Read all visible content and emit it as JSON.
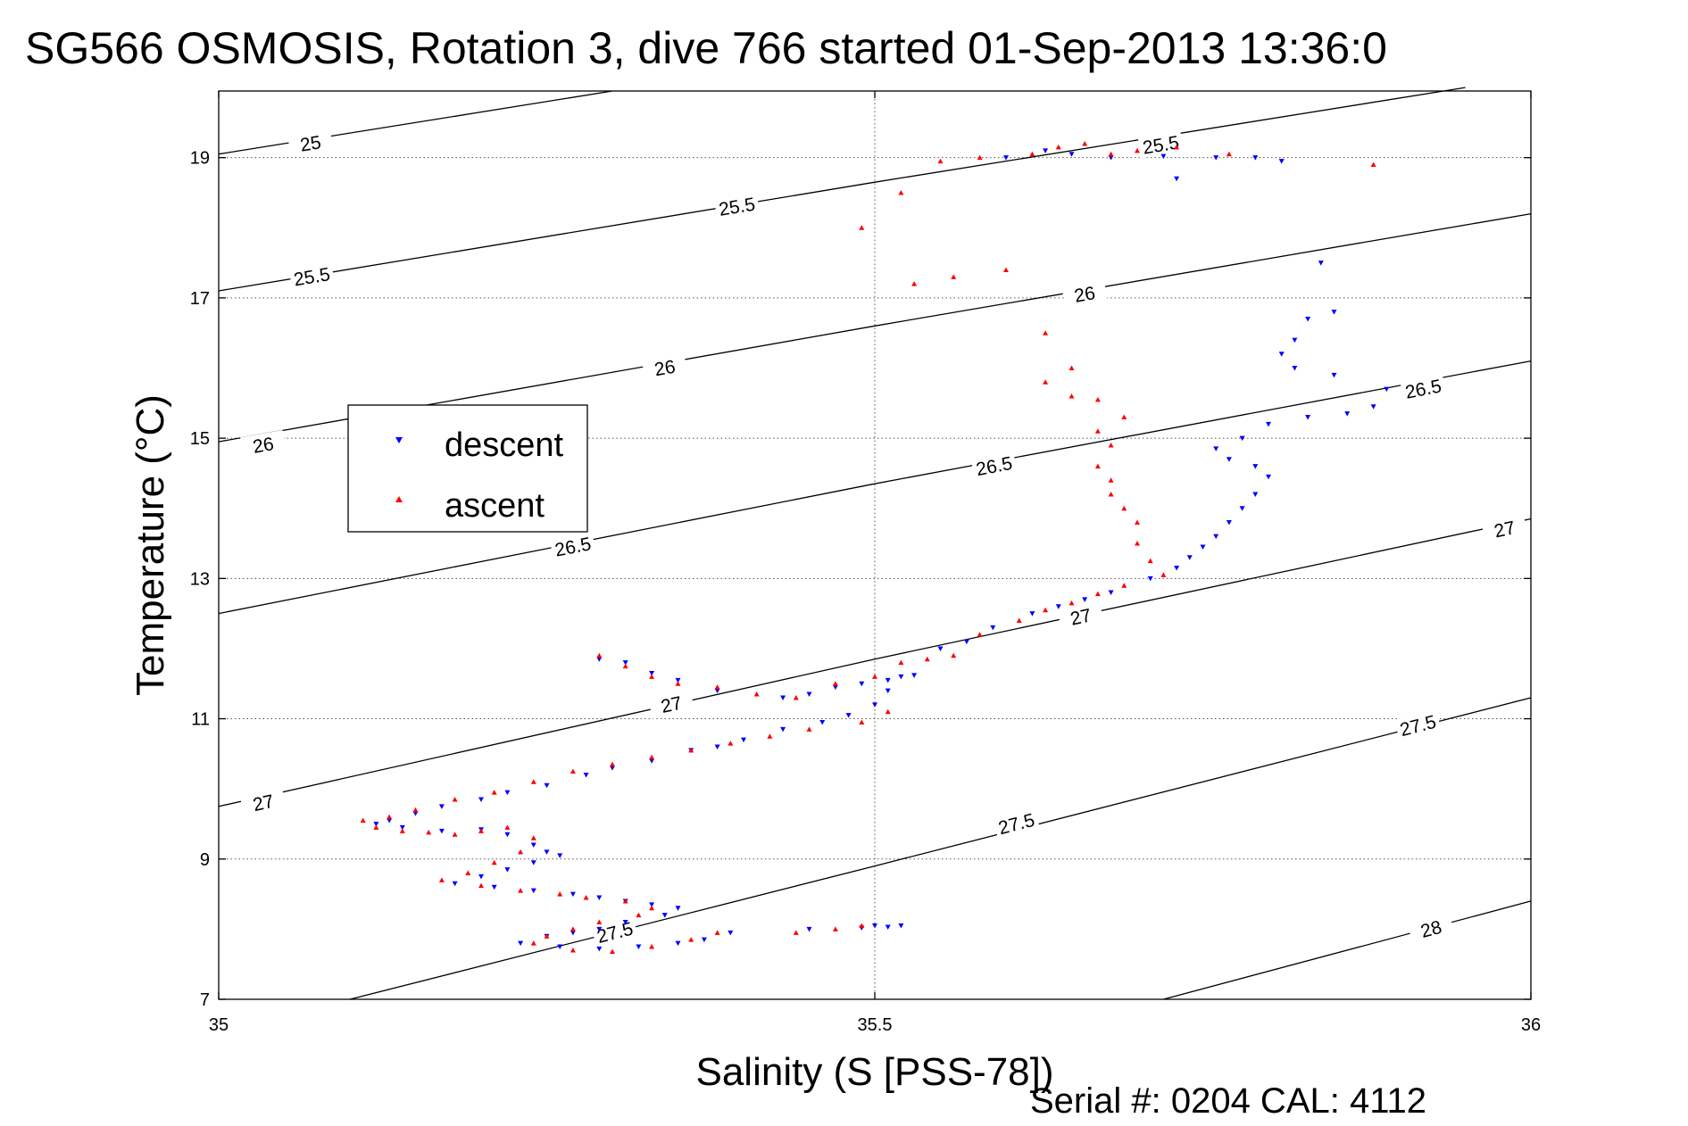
{
  "chart_data": {
    "type": "scatter",
    "title": "SG566 OSMOSIS, Rotation 3, dive 766 started 01-Sep-2013 13:36:0",
    "xlabel": "Salinity (S [PSS-78])",
    "ylabel": "Temperature (°C)",
    "footer": "Serial #: 0204  CAL: 4112",
    "xlim": [
      35,
      36
    ],
    "ylim": [
      7,
      19.95
    ],
    "x_ticks": [
      35,
      35.5,
      36
    ],
    "x_tick_labels": [
      "35",
      "35.5",
      "36"
    ],
    "y_ticks": [
      7,
      9,
      11,
      13,
      15,
      17,
      19
    ],
    "y_tick_labels": [
      "7",
      "9",
      "11",
      "13",
      "15",
      "17",
      "19"
    ],
    "grid": true,
    "legend": {
      "placement": "left-middle",
      "entries": [
        {
          "label": "descent",
          "color": "#0000ff",
          "marker": "triangle-down"
        },
        {
          "label": "ascent",
          "color": "#ff0000",
          "marker": "triangle-up"
        }
      ]
    },
    "density_contours": [
      {
        "level": 25,
        "label": "25",
        "points": [
          [
            35.0,
            19.05
          ],
          [
            35.3,
            19.95
          ]
        ],
        "label_at": [
          [
            35.07,
            19.2
          ]
        ]
      },
      {
        "level": 25.5,
        "label": "25.5",
        "points": [
          [
            35.0,
            17.1
          ],
          [
            35.5,
            18.65
          ],
          [
            35.95,
            20.0
          ]
        ],
        "label_at": [
          [
            35.071,
            17.3
          ],
          [
            35.395,
            18.3
          ],
          [
            35.718,
            19.18
          ]
        ]
      },
      {
        "level": 26,
        "label": "26",
        "points": [
          [
            35.0,
            14.95
          ],
          [
            35.5,
            16.6
          ],
          [
            36.0,
            18.2
          ]
        ],
        "label_at": [
          [
            35.034,
            14.9
          ],
          [
            35.34,
            16.0
          ],
          [
            35.66,
            17.05
          ]
        ]
      },
      {
        "level": 26.5,
        "label": "26.5",
        "points": [
          [
            35.0,
            12.5
          ],
          [
            35.5,
            14.35
          ],
          [
            36.0,
            16.1
          ]
        ],
        "label_at": [
          [
            35.27,
            13.45
          ],
          [
            35.591,
            14.6
          ],
          [
            35.918,
            15.7
          ]
        ]
      },
      {
        "level": 27,
        "label": "27",
        "points": [
          [
            35.0,
            9.75
          ],
          [
            35.5,
            11.85
          ],
          [
            36.0,
            13.85
          ]
        ],
        "label_at": [
          [
            35.034,
            9.8
          ],
          [
            35.345,
            11.2
          ],
          [
            35.657,
            12.45
          ],
          [
            35.98,
            13.7
          ]
        ]
      },
      {
        "level": 27.5,
        "label": "27.5",
        "points": [
          [
            35.1,
            7.0
          ],
          [
            35.5,
            8.9
          ],
          [
            36.0,
            11.3
          ]
        ],
        "label_at": [
          [
            35.302,
            7.95
          ],
          [
            35.608,
            9.5
          ],
          [
            35.914,
            10.9
          ]
        ]
      },
      {
        "level": 28,
        "label": "28",
        "points": [
          [
            35.72,
            7.0
          ],
          [
            36.0,
            8.4
          ]
        ],
        "label_at": [
          [
            35.924,
            8.0
          ]
        ]
      }
    ],
    "series": [
      {
        "name": "descent",
        "color": "#0000ff",
        "marker": "triangle-down",
        "points": [
          [
            35.29,
            11.85
          ],
          [
            35.31,
            11.8
          ],
          [
            35.33,
            11.65
          ],
          [
            35.35,
            11.55
          ],
          [
            35.38,
            11.4
          ],
          [
            35.43,
            11.3
          ],
          [
            35.45,
            11.35
          ],
          [
            35.47,
            11.45
          ],
          [
            35.49,
            11.5
          ],
          [
            35.51,
            11.55
          ],
          [
            35.52,
            11.6
          ],
          [
            35.53,
            11.62
          ],
          [
            35.51,
            11.4
          ],
          [
            35.5,
            11.2
          ],
          [
            35.48,
            11.05
          ],
          [
            35.46,
            10.95
          ],
          [
            35.43,
            10.85
          ],
          [
            35.4,
            10.7
          ],
          [
            35.38,
            10.6
          ],
          [
            35.36,
            10.55
          ],
          [
            35.33,
            10.4
          ],
          [
            35.3,
            10.3
          ],
          [
            35.28,
            10.2
          ],
          [
            35.25,
            10.05
          ],
          [
            35.22,
            9.95
          ],
          [
            35.2,
            9.85
          ],
          [
            35.17,
            9.75
          ],
          [
            35.15,
            9.65
          ],
          [
            35.13,
            9.55
          ],
          [
            35.12,
            9.5
          ],
          [
            35.14,
            9.45
          ],
          [
            35.17,
            9.4
          ],
          [
            35.2,
            9.42
          ],
          [
            35.22,
            9.35
          ],
          [
            35.24,
            9.2
          ],
          [
            35.25,
            9.1
          ],
          [
            35.26,
            9.05
          ],
          [
            35.24,
            8.95
          ],
          [
            35.22,
            8.85
          ],
          [
            35.2,
            8.75
          ],
          [
            35.18,
            8.65
          ],
          [
            35.21,
            8.6
          ],
          [
            35.24,
            8.55
          ],
          [
            35.27,
            8.5
          ],
          [
            35.29,
            8.45
          ],
          [
            35.31,
            8.4
          ],
          [
            35.33,
            8.35
          ],
          [
            35.35,
            8.3
          ],
          [
            35.34,
            8.2
          ],
          [
            35.31,
            8.1
          ],
          [
            35.29,
            8.0
          ],
          [
            35.27,
            7.95
          ],
          [
            35.25,
            7.9
          ],
          [
            35.23,
            7.8
          ],
          [
            35.26,
            7.75
          ],
          [
            35.29,
            7.72
          ],
          [
            35.32,
            7.75
          ],
          [
            35.35,
            7.8
          ],
          [
            35.37,
            7.85
          ],
          [
            35.39,
            7.95
          ],
          [
            35.45,
            8.0
          ],
          [
            35.49,
            8.02
          ],
          [
            35.5,
            8.05
          ],
          [
            35.51,
            8.03
          ],
          [
            35.52,
            8.05
          ],
          [
            35.55,
            12.0
          ],
          [
            35.57,
            12.1
          ],
          [
            35.59,
            12.3
          ],
          [
            35.62,
            12.5
          ],
          [
            35.64,
            12.6
          ],
          [
            35.66,
            12.7
          ],
          [
            35.68,
            12.8
          ],
          [
            35.71,
            13.0
          ],
          [
            35.73,
            13.15
          ],
          [
            35.74,
            13.3
          ],
          [
            35.75,
            13.45
          ],
          [
            35.76,
            13.6
          ],
          [
            35.77,
            13.8
          ],
          [
            35.78,
            14.0
          ],
          [
            35.79,
            14.2
          ],
          [
            35.8,
            14.45
          ],
          [
            35.79,
            14.6
          ],
          [
            35.77,
            14.7
          ],
          [
            35.76,
            14.85
          ],
          [
            35.78,
            15.0
          ],
          [
            35.8,
            15.2
          ],
          [
            35.83,
            15.3
          ],
          [
            35.86,
            15.35
          ],
          [
            35.88,
            15.45
          ],
          [
            35.89,
            15.7
          ],
          [
            35.85,
            15.9
          ],
          [
            35.82,
            16.0
          ],
          [
            35.81,
            16.2
          ],
          [
            35.82,
            16.4
          ],
          [
            35.83,
            16.7
          ],
          [
            35.85,
            16.8
          ],
          [
            35.84,
            17.5
          ],
          [
            35.81,
            18.95
          ],
          [
            35.76,
            19.0
          ],
          [
            35.72,
            19.02
          ],
          [
            35.68,
            19.0
          ],
          [
            35.65,
            19.05
          ],
          [
            35.63,
            19.1
          ],
          [
            35.6,
            19.0
          ],
          [
            35.79,
            19.0
          ],
          [
            35.73,
            18.7
          ]
        ]
      },
      {
        "name": "ascent",
        "color": "#ff0000",
        "marker": "triangle-up",
        "points": [
          [
            35.29,
            11.9
          ],
          [
            35.31,
            11.75
          ],
          [
            35.33,
            11.6
          ],
          [
            35.35,
            11.5
          ],
          [
            35.38,
            11.45
          ],
          [
            35.41,
            11.35
          ],
          [
            35.44,
            11.3
          ],
          [
            35.47,
            11.5
          ],
          [
            35.5,
            11.6
          ],
          [
            35.52,
            11.8
          ],
          [
            35.54,
            11.85
          ],
          [
            35.56,
            11.9
          ],
          [
            35.51,
            11.1
          ],
          [
            35.49,
            10.95
          ],
          [
            35.45,
            10.85
          ],
          [
            35.42,
            10.75
          ],
          [
            35.39,
            10.65
          ],
          [
            35.36,
            10.55
          ],
          [
            35.33,
            10.45
          ],
          [
            35.3,
            10.35
          ],
          [
            35.27,
            10.25
          ],
          [
            35.24,
            10.1
          ],
          [
            35.21,
            9.95
          ],
          [
            35.18,
            9.85
          ],
          [
            35.15,
            9.7
          ],
          [
            35.13,
            9.6
          ],
          [
            35.11,
            9.55
          ],
          [
            35.12,
            9.45
          ],
          [
            35.14,
            9.4
          ],
          [
            35.16,
            9.38
          ],
          [
            35.18,
            9.35
          ],
          [
            35.2,
            9.4
          ],
          [
            35.22,
            9.45
          ],
          [
            35.24,
            9.3
          ],
          [
            35.23,
            9.1
          ],
          [
            35.21,
            8.95
          ],
          [
            35.19,
            8.8
          ],
          [
            35.17,
            8.7
          ],
          [
            35.2,
            8.62
          ],
          [
            35.23,
            8.55
          ],
          [
            35.26,
            8.5
          ],
          [
            35.28,
            8.45
          ],
          [
            35.31,
            8.4
          ],
          [
            35.33,
            8.3
          ],
          [
            35.32,
            8.2
          ],
          [
            35.29,
            8.1
          ],
          [
            35.27,
            8.0
          ],
          [
            35.25,
            7.9
          ],
          [
            35.24,
            7.8
          ],
          [
            35.27,
            7.7
          ],
          [
            35.3,
            7.68
          ],
          [
            35.33,
            7.75
          ],
          [
            35.36,
            7.85
          ],
          [
            35.38,
            7.95
          ],
          [
            35.44,
            7.95
          ],
          [
            35.47,
            8.0
          ],
          [
            35.49,
            8.05
          ],
          [
            35.58,
            12.2
          ],
          [
            35.61,
            12.4
          ],
          [
            35.63,
            12.55
          ],
          [
            35.65,
            12.65
          ],
          [
            35.67,
            12.78
          ],
          [
            35.69,
            12.9
          ],
          [
            35.72,
            13.05
          ],
          [
            35.71,
            13.25
          ],
          [
            35.7,
            13.5
          ],
          [
            35.7,
            13.8
          ],
          [
            35.69,
            14.0
          ],
          [
            35.68,
            14.2
          ],
          [
            35.68,
            14.4
          ],
          [
            35.67,
            14.6
          ],
          [
            35.68,
            14.9
          ],
          [
            35.67,
            15.1
          ],
          [
            35.69,
            15.3
          ],
          [
            35.67,
            15.55
          ],
          [
            35.65,
            15.6
          ],
          [
            35.63,
            15.8
          ],
          [
            35.65,
            16.0
          ],
          [
            35.63,
            16.5
          ],
          [
            35.56,
            17.3
          ],
          [
            35.6,
            17.4
          ],
          [
            35.53,
            17.2
          ],
          [
            35.49,
            18.0
          ],
          [
            35.52,
            18.5
          ],
          [
            35.55,
            18.95
          ],
          [
            35.58,
            19.0
          ],
          [
            35.62,
            19.05
          ],
          [
            35.64,
            19.15
          ],
          [
            35.66,
            19.2
          ],
          [
            35.68,
            19.05
          ],
          [
            35.7,
            19.1
          ],
          [
            35.73,
            19.15
          ],
          [
            35.77,
            19.05
          ],
          [
            35.88,
            18.9
          ]
        ]
      }
    ]
  }
}
